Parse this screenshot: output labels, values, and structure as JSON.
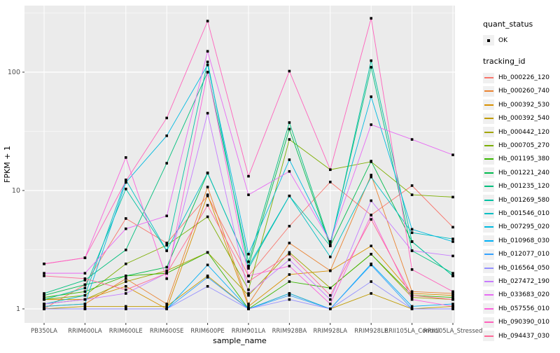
{
  "figure": {
    "background": "#FFFFFF",
    "panel_background": "#EBEBEB",
    "grid_color": "#FFFFFF",
    "tick_label_color": "#4D4D4D",
    "axis_title_color": "#000000",
    "point_color": "#000000"
  },
  "legend": {
    "quant_status_title": "quant_status",
    "quant_status_items": [
      {
        "label": "OK"
      }
    ],
    "tracking_title": "tracking_id"
  },
  "chart_data": {
    "type": "line",
    "title": "",
    "xlabel": "sample_name",
    "ylabel": "FPKM + 1",
    "y_scale": "log10",
    "y_ticks": [
      1,
      10,
      100
    ],
    "y_minor_ticks": [
      3.162,
      31.62,
      316.2
    ],
    "ylim": [
      0.75,
      365
    ],
    "grid": "on",
    "legend_position": "right",
    "x_categories": [
      "PB350LA",
      "RRIM600LA",
      "RRIM600LE",
      "RRIM600SE",
      "RRIM600PE",
      "RRIM901LA",
      "RRIM928BA",
      "RRIM928LA",
      "RRIM928LE",
      "RRII105LA_Control",
      "RRII105LA_Stressed"
    ],
    "series": [
      {
        "name": "Hb_000226_120",
        "color": "#F8766D",
        "values": [
          1.0,
          1.6,
          5.8,
          3.6,
          9.0,
          1.9,
          5.0,
          11.8,
          6.2,
          11.0,
          4.9
        ]
      },
      {
        "name": "Hb_000260_740",
        "color": "#EA8331",
        "values": [
          1.05,
          1.1,
          1.8,
          1.1,
          10.7,
          1.1,
          3.6,
          2.1,
          13.5,
          1.4,
          1.35
        ]
      },
      {
        "name": "Hb_000392_530",
        "color": "#D89000",
        "values": [
          1.2,
          1.2,
          1.55,
          1.0,
          9.2,
          1.05,
          1.95,
          2.1,
          3.4,
          1.35,
          1.3
        ]
      },
      {
        "name": "Hb_000392_540",
        "color": "#C09B00",
        "values": [
          1.0,
          1.05,
          1.05,
          1.05,
          1.9,
          1.0,
          1.35,
          1.0,
          1.35,
          1.0,
          1.05
        ]
      },
      {
        "name": "Hb_000442_120",
        "color": "#A3A500",
        "values": [
          1.1,
          1.2,
          1.7,
          2.1,
          3.0,
          1.3,
          3.0,
          1.5,
          2.9,
          1.25,
          1.2
        ]
      },
      {
        "name": "Hb_000705_270",
        "color": "#7CAE00",
        "values": [
          1.2,
          1.3,
          2.4,
          3.45,
          6.0,
          1.45,
          27.0,
          15.0,
          17.5,
          9.2,
          8.8
        ]
      },
      {
        "name": "Hb_001195_380",
        "color": "#39B600",
        "values": [
          1.25,
          1.4,
          1.9,
          2.0,
          3.0,
          1.0,
          1.7,
          1.5,
          2.9,
          1.3,
          1.25
        ]
      },
      {
        "name": "Hb_001221_240",
        "color": "#00BB4E",
        "values": [
          1.3,
          1.6,
          1.9,
          2.25,
          14.0,
          2.3,
          33.0,
          3.4,
          17.7,
          3.7,
          1.9
        ]
      },
      {
        "name": "Hb_001235_120",
        "color": "#00BF7D",
        "values": [
          1.35,
          1.75,
          3.15,
          17.0,
          100.0,
          2.5,
          37.5,
          3.5,
          110.0,
          3.1,
          2.0
        ]
      },
      {
        "name": "Hb_001269_580",
        "color": "#00C1A3",
        "values": [
          1.2,
          1.5,
          10.3,
          3.1,
          122.0,
          2.2,
          9.0,
          3.4,
          125.0,
          3.7,
          1.9
        ]
      },
      {
        "name": "Hb_001546_010",
        "color": "#00BFC4",
        "values": [
          1.1,
          1.3,
          12.3,
          3.1,
          14.1,
          2.3,
          9.0,
          2.75,
          13.0,
          4.4,
          3.9
        ]
      },
      {
        "name": "Hb_007295_020",
        "color": "#00BAE0",
        "values": [
          1.05,
          1.1,
          11.7,
          29.0,
          115.0,
          2.9,
          18.2,
          3.7,
          62.0,
          4.7,
          3.7
        ]
      },
      {
        "name": "Hb_010968_030",
        "color": "#00B0F6",
        "values": [
          1.0,
          1.0,
          1.0,
          1.0,
          2.35,
          1.0,
          1.35,
          1.0,
          2.4,
          1.05,
          1.1
        ]
      },
      {
        "name": "Hb_012077_010",
        "color": "#35A2FF",
        "values": [
          1.0,
          1.0,
          1.0,
          1.0,
          1.85,
          1.0,
          1.3,
          1.0,
          2.35,
          1.0,
          1.0
        ]
      },
      {
        "name": "Hb_016564_050",
        "color": "#9590FF",
        "values": [
          1.0,
          1.0,
          1.0,
          1.0,
          1.55,
          1.0,
          1.2,
          1.0,
          1.7,
          1.0,
          1.0
        ]
      },
      {
        "name": "Hb_027472_190",
        "color": "#C77CFF",
        "values": [
          1.1,
          1.2,
          1.35,
          2.0,
          45.0,
          1.35,
          2.6,
          1.2,
          8.2,
          3.1,
          2.8
        ]
      },
      {
        "name": "Hb_033683_020",
        "color": "#E76BF3",
        "values": [
          2.0,
          2.0,
          4.75,
          6.1,
          150.0,
          9.2,
          14.5,
          3.7,
          36.0,
          27.0,
          20.0
        ]
      },
      {
        "name": "Hb_057556_010",
        "color": "#FA62DB",
        "values": [
          2.4,
          2.7,
          19.0,
          1.8,
          100.0,
          1.9,
          2.3,
          1.1,
          6.2,
          1.2,
          1.05
        ]
      },
      {
        "name": "Hb_090390_010",
        "color": "#FF62BC",
        "values": [
          2.4,
          2.7,
          12.0,
          41.0,
          270.0,
          13.2,
          102.0,
          15.0,
          285.0,
          2.15,
          1.4
        ]
      },
      {
        "name": "Hb_094437_030",
        "color": "#FF6A98",
        "values": [
          1.9,
          1.8,
          1.45,
          2.0,
          7.5,
          1.7,
          2.9,
          1.3,
          5.7,
          1.3,
          1.2
        ]
      }
    ]
  }
}
